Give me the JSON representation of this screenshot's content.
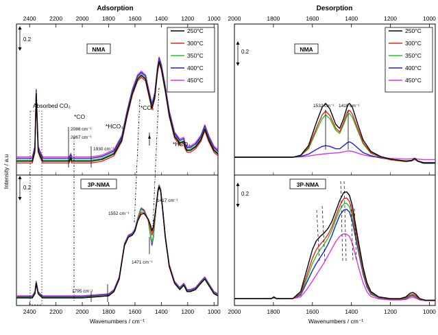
{
  "chart_data": [
    {
      "type": "line",
      "title": "Adsorption",
      "xlabel": "Wavenumbers / cm⁻¹",
      "ylabel": "Intensity / a.u",
      "x_reversed": true,
      "xlim": [
        2500,
        970
      ],
      "x_ticks": [
        2400,
        2200,
        2000,
        1800,
        1600,
        1400,
        1200,
        1000
      ],
      "x_tick_labels": [
        "2400",
        "2200",
        "2000",
        "1800",
        "1600",
        "1400",
        "1200",
        "1000"
      ],
      "scale_bar": "0.2",
      "legend": {
        "position": "top-right",
        "entries": [
          "250°C",
          "300°C",
          "350°C",
          "400°C",
          "450°C"
        ]
      },
      "panels": [
        {
          "label": "NMA",
          "x": [
            2500,
            2380,
            2360,
            2350,
            2335,
            2320,
            2300,
            2200,
            2100,
            2087,
            2080,
            2000,
            1930,
            1850,
            1760,
            1700,
            1660,
            1620,
            1580,
            1552,
            1520,
            1490,
            1471,
            1450,
            1430,
            1417,
            1400,
            1370,
            1340,
            1300,
            1260,
            1230,
            1220,
            1205,
            1180,
            1140,
            1100,
            1070,
            1040,
            1000,
            970
          ],
          "base": [
            0.01,
            0.01,
            0.04,
            0.2,
            0.04,
            0.025,
            0.01,
            0.01,
            0.01,
            0.02,
            0.01,
            0.01,
            0.01,
            0.015,
            0.03,
            0.07,
            0.14,
            0.2,
            0.24,
            0.25,
            0.24,
            0.19,
            0.16,
            0.19,
            0.26,
            0.29,
            0.27,
            0.21,
            0.14,
            0.08,
            0.06,
            0.065,
            0.05,
            0.04,
            0.04,
            0.05,
            0.07,
            0.1,
            0.07,
            0.04,
            0.03
          ],
          "series": [
            {
              "name": "250°C",
              "offset": 0.0
            },
            {
              "name": "300°C",
              "offset": -0.005
            },
            {
              "name": "350°C",
              "offset": 0.003
            },
            {
              "name": "400°C",
              "offset": 0.008
            },
            {
              "name": "450°C",
              "offset": 0.012
            }
          ],
          "annotations": [
            "Absorbed CO₂",
            "*CO",
            "2086 cm⁻¹",
            "2067 cm⁻¹",
            "1930 cm⁻¹",
            "*HCO₃",
            "*CO₃",
            "*HCO₃"
          ]
        },
        {
          "label": "3P-NMA",
          "x": [
            2500,
            2380,
            2360,
            2350,
            2335,
            2320,
            2300,
            2200,
            2000,
            1900,
            1800,
            1760,
            1720,
            1700,
            1680,
            1650,
            1620,
            1600,
            1580,
            1560,
            1552,
            1530,
            1500,
            1480,
            1471,
            1460,
            1440,
            1425,
            1417,
            1405,
            1390,
            1370,
            1340,
            1300,
            1260,
            1230,
            1220,
            1205,
            1180,
            1140,
            1100,
            1070,
            1040,
            1000,
            970
          ],
          "base": [
            0.01,
            0.01,
            0.03,
            0.08,
            0.03,
            0.02,
            0.01,
            0.01,
            0.01,
            0.015,
            0.02,
            0.04,
            0.1,
            0.18,
            0.26,
            0.3,
            0.31,
            0.33,
            0.38,
            0.42,
            0.43,
            0.42,
            0.38,
            0.32,
            0.29,
            0.32,
            0.44,
            0.52,
            0.54,
            0.52,
            0.43,
            0.3,
            0.16,
            0.08,
            0.05,
            0.07,
            0.06,
            0.04,
            0.04,
            0.05,
            0.08,
            0.1,
            0.07,
            0.03,
            0.02
          ],
          "series": [
            {
              "name": "250°C",
              "offset": 0.0,
              "dips": [
                [
                  1471,
                  0.04
                ],
                [
                  1552,
                  -0.02
                ]
              ]
            },
            {
              "name": "300°C",
              "offset": 0.0,
              "dips": [
                [
                  1471,
                  0.02
                ],
                [
                  1552,
                  -0.01
                ]
              ]
            },
            {
              "name": "350°C",
              "offset": 0.003,
              "dips": [
                [
                  1471,
                  -0.02
                ]
              ]
            },
            {
              "name": "400°C",
              "offset": 0.006,
              "dips": [
                [
                  1471,
                  -0.03
                ]
              ]
            },
            {
              "name": "450°C",
              "offset": 0.01,
              "dips": [
                [
                  1471,
                  -0.04
                ]
              ]
            }
          ],
          "annotations": [
            "1552 cm⁻¹",
            "1471 cm⁻¹",
            "1417 cm⁻¹",
            "1795 cm⁻¹"
          ]
        }
      ]
    },
    {
      "type": "line",
      "title": "Desorption",
      "xlabel": "Wavenumbers / cm⁻¹",
      "x_reversed": true,
      "xlim": [
        2000,
        970
      ],
      "x_ticks": [
        2000,
        1800,
        1600,
        1400,
        1200,
        1000
      ],
      "x_tick_labels": [
        "2000",
        "1800",
        "1600",
        "1400",
        "1200",
        "1000"
      ],
      "scale_bar": "0.2",
      "legend": {
        "position": "top-right",
        "entries": [
          "250°C",
          "300°C",
          "350°C",
          "400°C",
          "450°C"
        ]
      },
      "panels": [
        {
          "label": "NMA",
          "x": [
            2000,
            1700,
            1660,
            1620,
            1580,
            1550,
            1532,
            1510,
            1480,
            1460,
            1440,
            1420,
            1410,
            1395,
            1370,
            1340,
            1300,
            1250,
            1200,
            1120,
            1090,
            1075,
            1060,
            1030,
            1000,
            970
          ],
          "series": [
            {
              "name": "250°C",
              "y": [
                0.0,
                0.0,
                0.005,
                0.03,
                0.09,
                0.13,
                0.14,
                0.125,
                0.085,
                0.075,
                0.1,
                0.135,
                0.14,
                0.13,
                0.09,
                0.045,
                0.015,
                0.002,
                -0.005,
                -0.01,
                -0.008,
                -0.003,
                -0.01,
                -0.015,
                -0.015,
                -0.015
              ]
            },
            {
              "name": "300°C",
              "y": [
                0.0,
                0.0,
                0.005,
                0.025,
                0.075,
                0.11,
                0.12,
                0.108,
                0.075,
                0.066,
                0.09,
                0.118,
                0.122,
                0.112,
                0.078,
                0.038,
                0.012,
                0.0,
                -0.006,
                -0.011,
                -0.009,
                -0.004,
                -0.01,
                -0.015,
                -0.015,
                -0.015
              ]
            },
            {
              "name": "350°C",
              "y": [
                0.0,
                0.0,
                0.004,
                0.022,
                0.068,
                0.1,
                0.11,
                0.1,
                0.07,
                0.062,
                0.085,
                0.11,
                0.114,
                0.104,
                0.072,
                0.035,
                0.01,
                0.0,
                -0.007,
                -0.012,
                -0.01,
                -0.005,
                -0.011,
                -0.016,
                -0.016,
                -0.016
              ]
            },
            {
              "name": "400°C",
              "y": [
                0.0,
                0.0,
                0.002,
                0.008,
                0.02,
                0.028,
                0.03,
                0.028,
                0.022,
                0.022,
                0.03,
                0.038,
                0.04,
                0.036,
                0.025,
                0.012,
                0.004,
                -0.002,
                -0.006,
                -0.01,
                -0.009,
                -0.006,
                -0.01,
                -0.014,
                -0.014,
                -0.014
              ]
            },
            {
              "name": "450°C",
              "y": [
                0.0,
                0.0,
                0.001,
                0.003,
                0.006,
                0.008,
                0.009,
                0.01,
                0.011,
                0.012,
                0.014,
                0.016,
                0.016,
                0.015,
                0.011,
                0.006,
                0.002,
                0.0,
                -0.003,
                -0.005,
                -0.004,
                -0.003,
                -0.005,
                -0.006,
                -0.006,
                -0.006
              ]
            }
          ],
          "annotations": [
            "1532 cm⁻¹",
            "1410 cm⁻¹"
          ]
        },
        {
          "label": "3P-NMA",
          "x": [
            2000,
            1810,
            1798,
            1785,
            1700,
            1660,
            1630,
            1600,
            1580,
            1560,
            1540,
            1520,
            1500,
            1480,
            1460,
            1440,
            1425,
            1410,
            1395,
            1380,
            1360,
            1340,
            1320,
            1300,
            1260,
            1200,
            1150,
            1120,
            1100,
            1085,
            1070,
            1050,
            1020,
            1000,
            970
          ],
          "series": [
            {
              "name": "250°C",
              "y": [
                0.02,
                0.02,
                0.03,
                0.02,
                0.02,
                0.06,
                0.18,
                0.3,
                0.35,
                0.375,
                0.395,
                0.42,
                0.46,
                0.52,
                0.58,
                0.625,
                0.63,
                0.61,
                0.55,
                0.45,
                0.32,
                0.2,
                0.11,
                0.06,
                0.03,
                0.02,
                0.02,
                0.03,
                0.05,
                0.055,
                0.045,
                0.02,
                0.01,
                0.01,
                0.01
              ]
            },
            {
              "name": "300°C",
              "y": [
                0.02,
                0.02,
                0.03,
                0.02,
                0.02,
                0.05,
                0.15,
                0.25,
                0.3,
                0.33,
                0.355,
                0.385,
                0.43,
                0.49,
                0.55,
                0.59,
                0.595,
                0.575,
                0.515,
                0.42,
                0.3,
                0.185,
                0.1,
                0.055,
                0.028,
                0.018,
                0.018,
                0.025,
                0.04,
                0.045,
                0.036,
                0.018,
                0.01,
                0.01,
                0.01
              ]
            },
            {
              "name": "350°C",
              "y": [
                0.02,
                0.02,
                0.028,
                0.02,
                0.02,
                0.045,
                0.13,
                0.22,
                0.265,
                0.3,
                0.33,
                0.365,
                0.41,
                0.47,
                0.525,
                0.56,
                0.565,
                0.545,
                0.49,
                0.4,
                0.285,
                0.175,
                0.095,
                0.05,
                0.026,
                0.017,
                0.017,
                0.022,
                0.036,
                0.04,
                0.032,
                0.016,
                0.01,
                0.01,
                0.01
              ]
            },
            {
              "name": "400°C",
              "y": [
                0.02,
                0.02,
                0.026,
                0.02,
                0.02,
                0.04,
                0.11,
                0.18,
                0.22,
                0.255,
                0.29,
                0.33,
                0.38,
                0.44,
                0.495,
                0.525,
                0.53,
                0.515,
                0.46,
                0.375,
                0.265,
                0.16,
                0.085,
                0.045,
                0.024,
                0.016,
                0.016,
                0.02,
                0.032,
                0.036,
                0.029,
                0.015,
                0.01,
                0.01,
                0.01
              ]
            },
            {
              "name": "450°C",
              "y": [
                0.02,
                0.02,
                0.024,
                0.02,
                0.02,
                0.03,
                0.07,
                0.12,
                0.155,
                0.19,
                0.225,
                0.265,
                0.305,
                0.345,
                0.375,
                0.39,
                0.388,
                0.375,
                0.335,
                0.27,
                0.185,
                0.11,
                0.058,
                0.032,
                0.018,
                0.012,
                0.012,
                0.015,
                0.024,
                0.027,
                0.022,
                0.012,
                0.008,
                0.008,
                0.008
              ]
            }
          ],
          "annotations": []
        }
      ]
    }
  ],
  "colors": {
    "250°C": "#000000",
    "300°C": "#e8221b",
    "350°C": "#22c322",
    "400°C": "#1d1dd6",
    "450°C": "#e62ee6"
  }
}
